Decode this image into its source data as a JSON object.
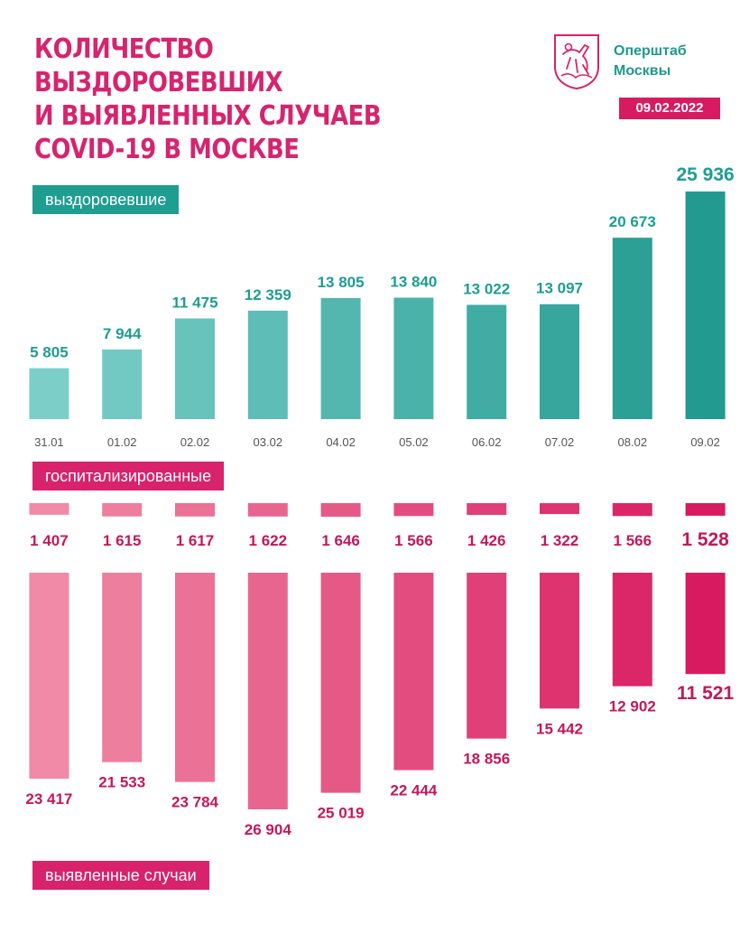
{
  "header": {
    "title_lines": [
      "КОЛИЧЕСТВО ВЫЗДОРОВЕВШИХ",
      "И ВЫЯВЛЕННЫХ СЛУЧАЕВ",
      "COVID-19 В МОСКВЕ"
    ],
    "org_lines": [
      "Оперштаб",
      "Москвы"
    ],
    "date": "09.02.2022"
  },
  "legend": {
    "recovered": "выздоровевшие",
    "hospitalized": "госпитализированные",
    "cases": "выявленные случаи"
  },
  "colors": {
    "accent_pink": "#d8226c",
    "accent_teal": "#1e9d91",
    "recovered_light": "#7ccfc9",
    "recovered_dark": "#239a8f",
    "pink_light": "#f08aa6",
    "pink_dark": "#d81b60",
    "value_teal": "#1e9d91",
    "value_pink": "#c2185b"
  },
  "chart_data": {
    "type": "bar",
    "categories": [
      "31.01",
      "01.02",
      "02.02",
      "03.02",
      "04.02",
      "05.02",
      "06.02",
      "07.02",
      "08.02",
      "09.02"
    ],
    "series": [
      {
        "name": "выздоровевшие",
        "values": [
          5805,
          7944,
          11475,
          12359,
          13805,
          13840,
          13022,
          13097,
          20673,
          25936
        ],
        "labels": [
          "5 805",
          "7 944",
          "11 475",
          "12 359",
          "13 805",
          "13 840",
          "13 022",
          "13 097",
          "20 673",
          "25 936"
        ]
      },
      {
        "name": "госпитализированные",
        "values": [
          1407,
          1615,
          1617,
          1622,
          1646,
          1566,
          1426,
          1322,
          1566,
          1528
        ],
        "labels": [
          "1 407",
          "1 615",
          "1 617",
          "1 622",
          "1 646",
          "1 566",
          "1 426",
          "1 322",
          "1 566",
          "1 528"
        ]
      },
      {
        "name": "выявленные случаи",
        "values": [
          23417,
          21533,
          23784,
          26904,
          25019,
          22444,
          18856,
          15442,
          12902,
          11521
        ],
        "labels": [
          "23 417",
          "21 533",
          "23 784",
          "26 904",
          "25 019",
          "22 444",
          "18 856",
          "15 442",
          "12 902",
          "11 521"
        ]
      }
    ]
  }
}
